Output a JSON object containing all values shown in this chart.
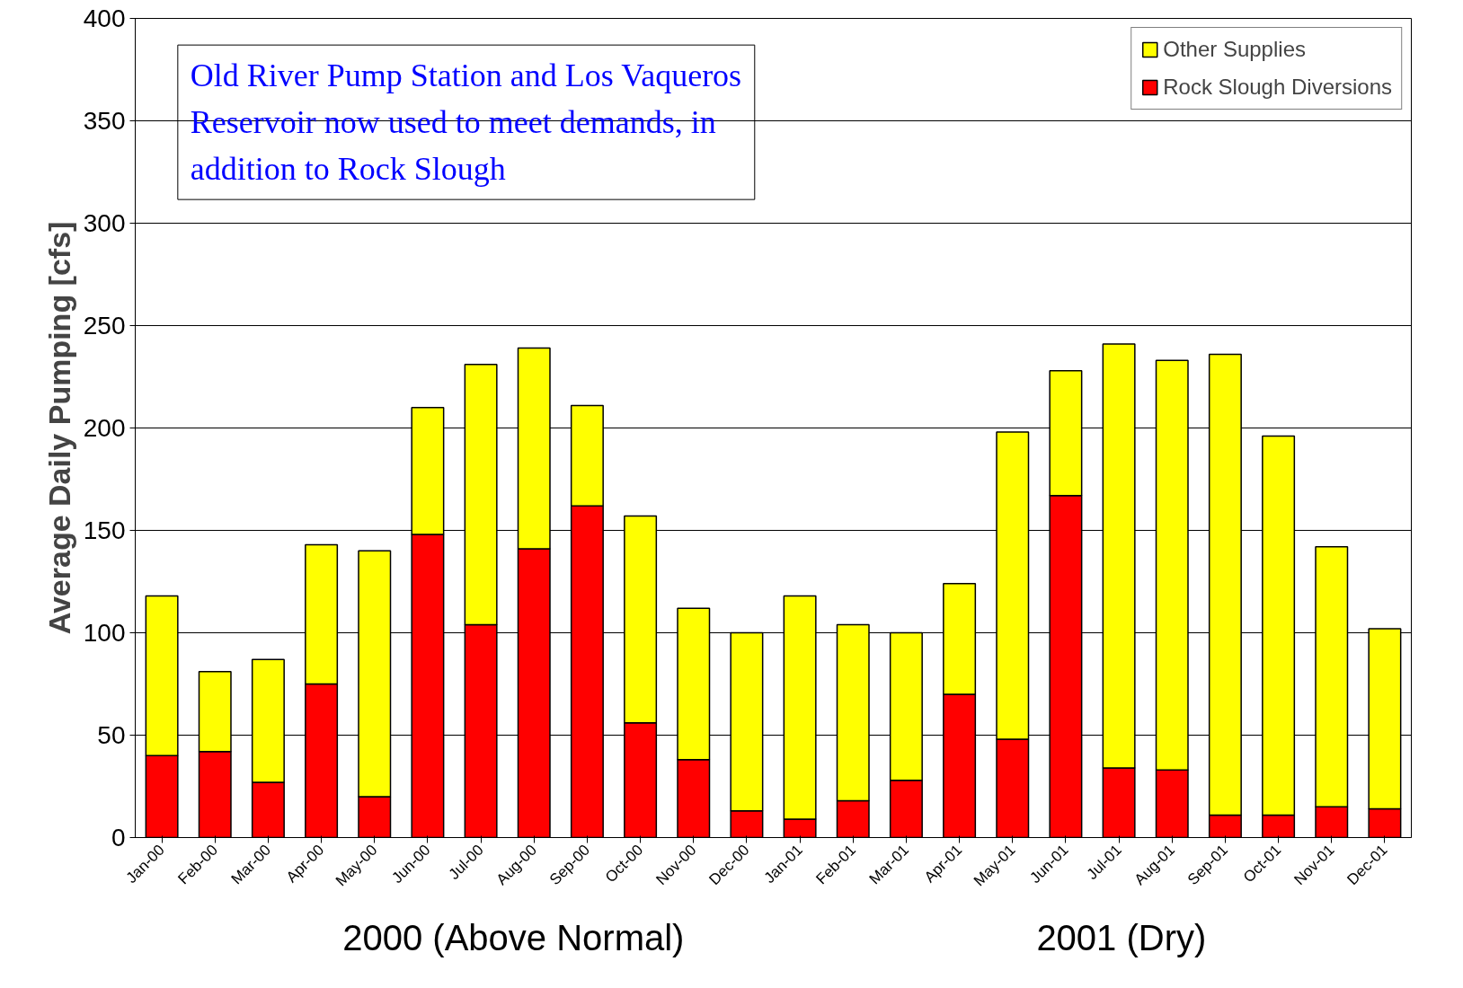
{
  "chart_data": {
    "type": "bar",
    "stacked": true,
    "ylabel": "Average Daily Pumping [cfs]",
    "categories": [
      "Jan-00",
      "Feb-00",
      "Mar-00",
      "Apr-00",
      "May-00",
      "Jun-00",
      "Jul-00",
      "Aug-00",
      "Sep-00",
      "Oct-00",
      "Nov-00",
      "Dec-00",
      "Jan-01",
      "Feb-01",
      "Mar-01",
      "Apr-01",
      "May-01",
      "Jun-01",
      "Jul-01",
      "Aug-01",
      "Sep-01",
      "Oct-01",
      "Nov-01",
      "Dec-01"
    ],
    "series": [
      {
        "name": "Rock Slough Diversions",
        "color": "#ff0000",
        "values": [
          40,
          42,
          27,
          75,
          20,
          148,
          104,
          141,
          162,
          56,
          38,
          13,
          9,
          18,
          28,
          70,
          48,
          167,
          34,
          33,
          11,
          11,
          15,
          14
        ]
      },
      {
        "name": "Other Supplies",
        "color": "#ffff00",
        "values": [
          78,
          39,
          60,
          68,
          120,
          62,
          127,
          98,
          49,
          101,
          74,
          87,
          109,
          86,
          72,
          54,
          150,
          61,
          207,
          200,
          225,
          185,
          127,
          88
        ]
      }
    ],
    "ylim": [
      0,
      400
    ],
    "yticks": [
      0,
      50,
      100,
      150,
      200,
      250,
      300,
      350,
      400
    ],
    "grid": "y",
    "legend": "top right",
    "annotations": [
      "Old River Pump Station and Los Vaqueros Reservoir now used to meet demands, in addition to Rock Slough",
      "2000 (Above Normal)",
      "2001 (Dry)"
    ]
  }
}
